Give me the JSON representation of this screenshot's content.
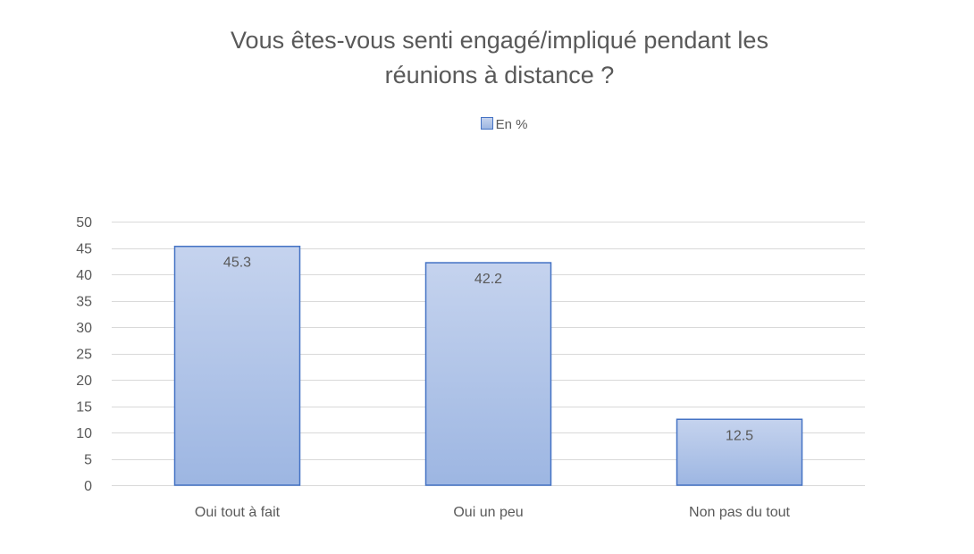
{
  "chart_data": {
    "type": "bar",
    "title_lines": [
      "Vous êtes-vous senti engagé/impliqué pendant les",
      "réunions à distance ?"
    ],
    "categories": [
      "Oui tout à fait",
      "Oui un peu",
      "Non pas du tout"
    ],
    "series": [
      {
        "name": "En %",
        "values": [
          45.3,
          42.2,
          12.5
        ]
      }
    ],
    "ylim": [
      0,
      50
    ],
    "yticks": [
      0,
      5,
      10,
      15,
      20,
      25,
      30,
      35,
      40,
      45,
      50
    ],
    "grid": true,
    "legend_position": "top",
    "data_labels": [
      "45.3",
      "42.2",
      "12.5"
    ],
    "colors": {
      "bar_fill_top": "#c5d3ee",
      "bar_fill_bottom": "#9db6e2",
      "bar_border": "#4472c4",
      "grid": "#d9d9d9",
      "text": "#595959"
    }
  }
}
